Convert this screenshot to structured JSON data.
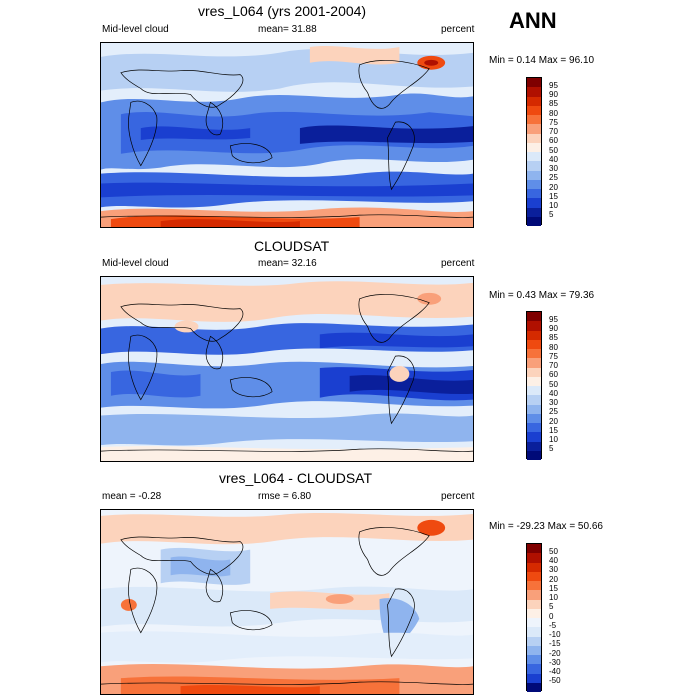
{
  "season_label": "ANN",
  "panels": [
    {
      "title": "vres_L064 (yrs 2001-2004)",
      "variable": "Mid-level cloud",
      "stat1": "mean=  31.88",
      "stat2": "",
      "units": "percent",
      "range": "Min =   0.14 Max =  96.10",
      "colorbar_labels": [
        "95",
        "90",
        "85",
        "80",
        "75",
        "70",
        "60",
        "50",
        "40",
        "30",
        "25",
        "20",
        "15",
        "10",
        "5"
      ]
    },
    {
      "title": "CLOUDSAT",
      "variable": "Mid-level cloud",
      "stat1": "mean=  32.16",
      "stat2": "",
      "units": "percent",
      "range": "Min =   0.43 Max =  79.36",
      "colorbar_labels": [
        "95",
        "90",
        "85",
        "80",
        "75",
        "70",
        "60",
        "50",
        "40",
        "30",
        "25",
        "20",
        "15",
        "10",
        "5"
      ]
    },
    {
      "title": "vres_L064 - CLOUDSAT",
      "variable": "mean =  -0.28",
      "stat1": "rmse =   6.80",
      "stat2": "",
      "units": "percent",
      "range": "Min = -29.23 Max =  50.66",
      "colorbar_labels": [
        "50",
        "40",
        "30",
        "20",
        "15",
        "10",
        "5",
        "0",
        "-5",
        "-10",
        "-15",
        "-20",
        "-30",
        "-40",
        "-50"
      ]
    }
  ],
  "colors": {
    "abs_scale": [
      "#7f0000",
      "#b01000",
      "#d52a00",
      "#ef4a10",
      "#f7723a",
      "#f9a07a",
      "#fcd3bc",
      "#fdf0e6",
      "#dbe9f9",
      "#b7d0f3",
      "#8fb4ee",
      "#5f8ee8",
      "#3866e0",
      "#1a3fd0",
      "#0a1f9b",
      "#000a78"
    ],
    "diff_scale": [
      "#7f0000",
      "#b01000",
      "#d52a00",
      "#ef4a10",
      "#f7723a",
      "#f9a07a",
      "#fcd3bc",
      "#fdf0e6",
      "#eef4fc",
      "#dbe9f9",
      "#b7d0f3",
      "#8fb4ee",
      "#5f8ee8",
      "#3866e0",
      "#1a3fd0",
      "#000a78"
    ]
  }
}
